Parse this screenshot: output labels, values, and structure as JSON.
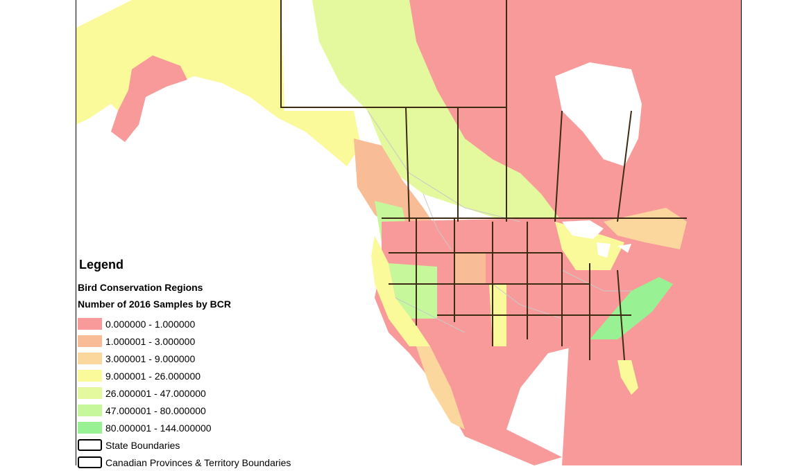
{
  "legend": {
    "title": "Legend",
    "layer_name": "Bird Conservation Regions",
    "field_name": "Number of 2016 Samples by BCR",
    "classes": [
      {
        "label": "0.000000 - 1.000000",
        "color": "#f99a9a"
      },
      {
        "label": "1.000001 - 3.000000",
        "color": "#f8bc97"
      },
      {
        "label": "3.000001 - 9.000000",
        "color": "#fbd79d"
      },
      {
        "label": "9.000001 - 26.000000",
        "color": "#fafa9b"
      },
      {
        "label": "26.000001 - 47.000000",
        "color": "#e4f89d"
      },
      {
        "label": "47.000001 - 80.000000",
        "color": "#c6f89b"
      },
      {
        "label": "80.000001 - 144.000000",
        "color": "#98f294"
      }
    ],
    "boundaries": [
      {
        "label": "State Boundaries"
      },
      {
        "label": "Canadian Provinces & Territory Boundaries"
      }
    ]
  },
  "map": {
    "water_color": "#ffffff",
    "boundary_color": "#3d2a12",
    "bcr_line_color": "#c9c9c9"
  }
}
